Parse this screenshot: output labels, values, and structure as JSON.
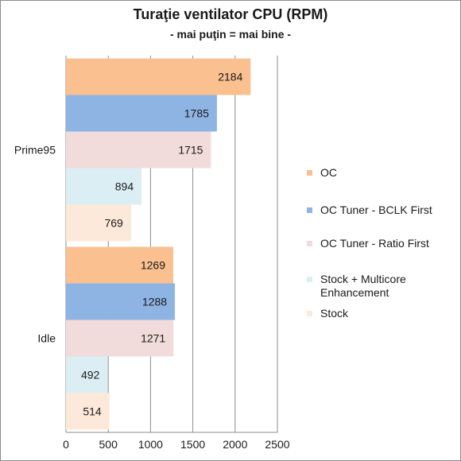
{
  "title": "Turaţie ventilator CPU (RPM)",
  "subtitle": "- mai puţin = mai bine -",
  "chart_data": {
    "type": "bar",
    "orientation": "horizontal",
    "categories": [
      "Prime95",
      "Idle"
    ],
    "series": [
      {
        "name": "OC",
        "values": [
          2184,
          1269
        ],
        "color": "#fac090"
      },
      {
        "name": "OC Tuner - BCLK First",
        "values": [
          1785,
          1288
        ],
        "color": "#8eb4e3"
      },
      {
        "name": "OC Tuner - Ratio First",
        "values": [
          1715,
          1271
        ],
        "color": "#f2dcdb"
      },
      {
        "name": "Stock + Multicore Enhancement",
        "values": [
          894,
          492
        ],
        "color": "#dbeef4"
      },
      {
        "name": "Stock",
        "values": [
          769,
          514
        ],
        "color": "#fde9d9"
      }
    ],
    "xlim": [
      0,
      2500
    ],
    "xticks": [
      0,
      500,
      1000,
      1500,
      2000,
      2500
    ],
    "grid": true,
    "legend": "right",
    "data_labels": true
  }
}
